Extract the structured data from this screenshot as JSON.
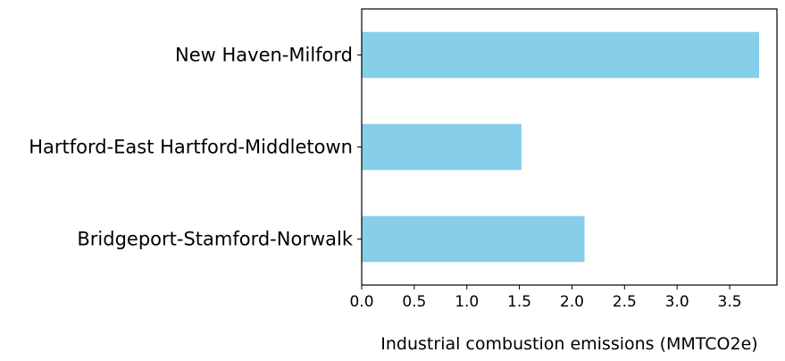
{
  "chart_data": {
    "type": "bar",
    "orientation": "horizontal",
    "categories": [
      "New Haven-Milford",
      "Hartford-East Hartford-Middletown",
      "Bridgeport-Stamford-Norwalk"
    ],
    "values": [
      3.78,
      1.52,
      2.12
    ],
    "xlabel": "Industrial combustion emissions (MMTCO2e)",
    "ylabel": "",
    "title": "",
    "xlim": [
      0,
      3.95
    ],
    "xticks": [
      "0.0",
      "0.5",
      "1.0",
      "1.5",
      "2.0",
      "2.5",
      "3.0",
      "3.5"
    ],
    "grid": false,
    "legend": "none",
    "bar_color": "#87CEEB"
  }
}
